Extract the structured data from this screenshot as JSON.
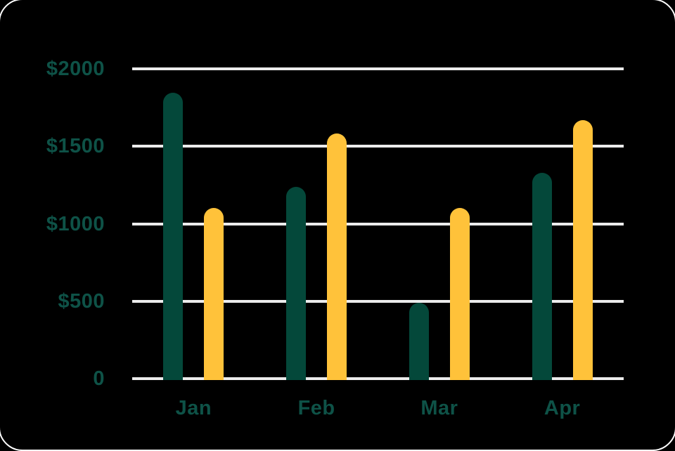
{
  "card": {
    "background": "#000000",
    "corner_stroke_color": "#FFFFFF"
  },
  "chart_data": {
    "type": "bar",
    "title": "",
    "categories": [
      "Jan",
      "Feb",
      "Mar",
      "Apr"
    ],
    "series": [
      {
        "name": "green",
        "color": "#04483A",
        "values": [
          1845,
          1240,
          490,
          1330
        ]
      },
      {
        "name": "yellow",
        "color": "#FFC23A",
        "values": [
          1100,
          1585,
          1100,
          1670
        ]
      }
    ],
    "y_axis": {
      "ylim": [
        0,
        2000
      ],
      "ticks": [
        {
          "label": "$2000",
          "value": 2000
        },
        {
          "label": "$1500",
          "value": 1500
        },
        {
          "label": "$1000",
          "value": 1000
        },
        {
          "label": "$500",
          "value": 500
        },
        {
          "label": "0",
          "value": 0
        }
      ]
    },
    "grid": true,
    "legend_position": "none",
    "colors": {
      "gridline": "#ECECEC",
      "axis_label": "#0E5247",
      "background": "#000000"
    }
  }
}
